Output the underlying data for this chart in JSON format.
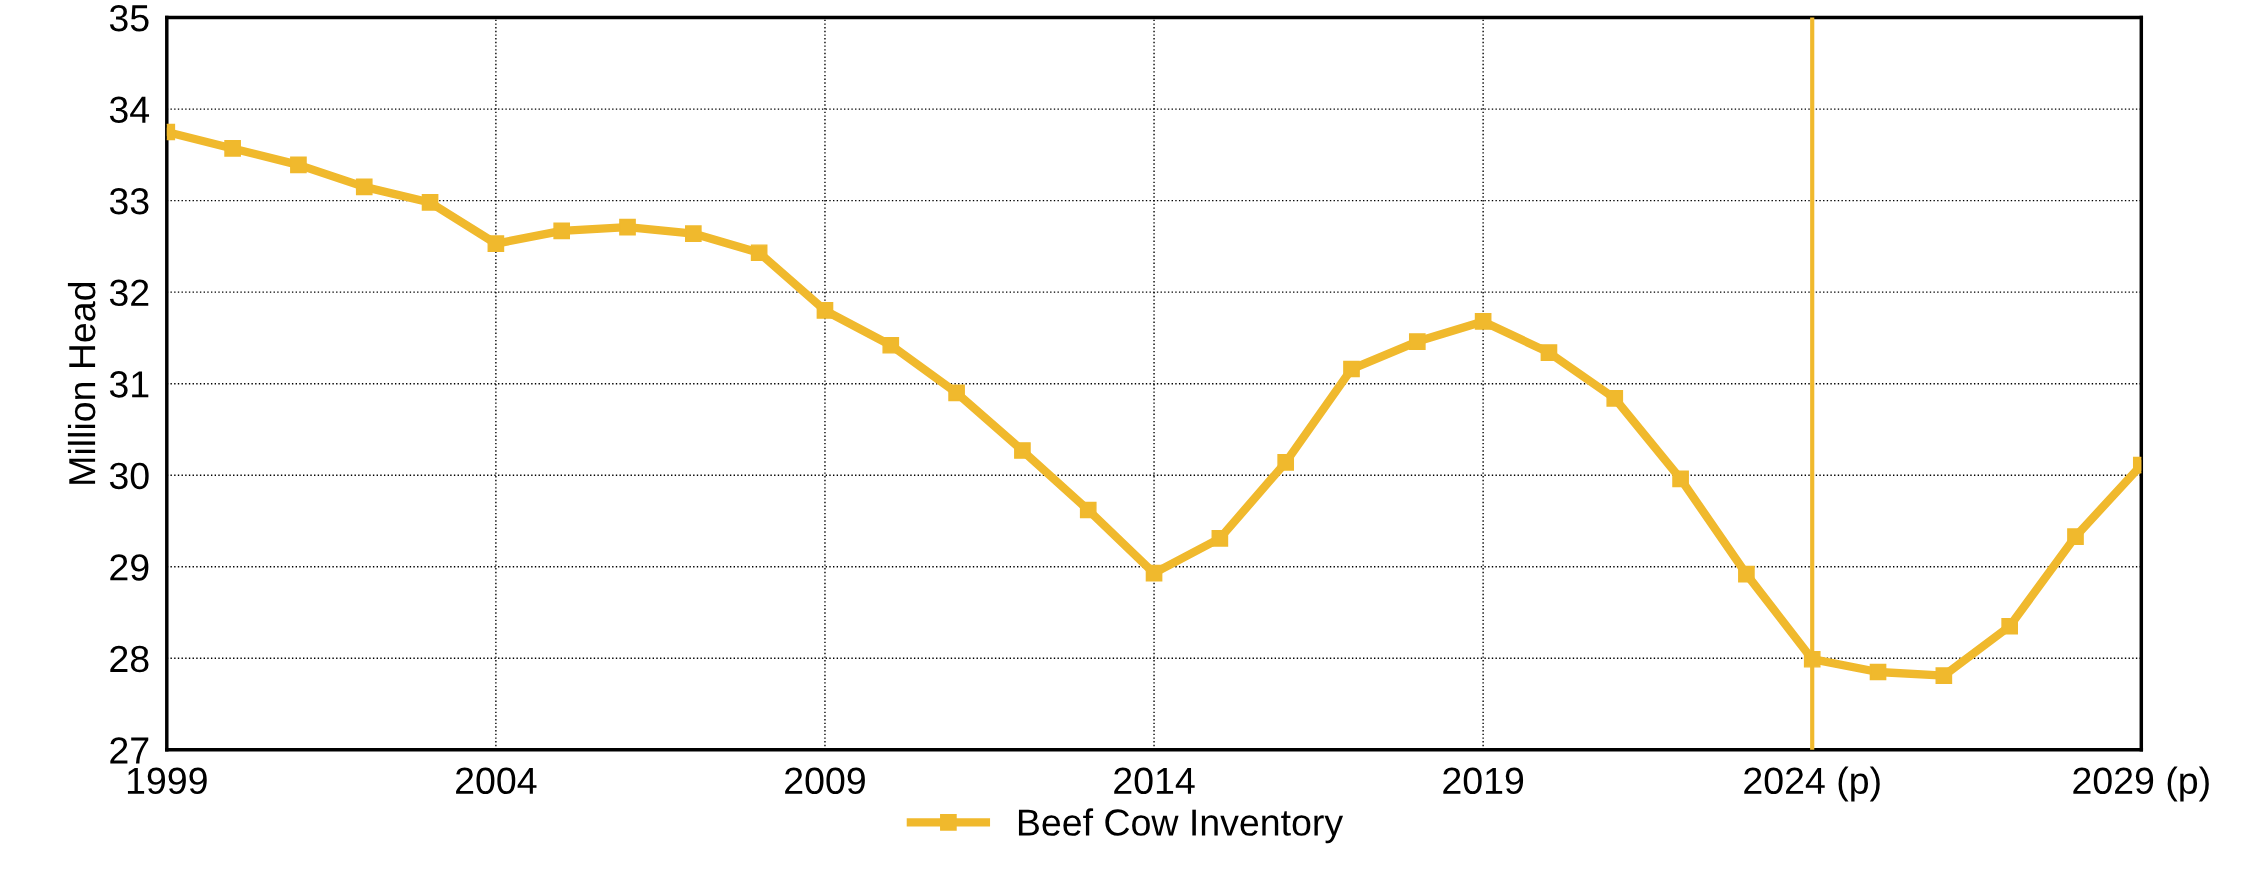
{
  "chart_data": {
    "type": "line",
    "ylabel": "Million Head",
    "x": [
      1999,
      2000,
      2001,
      2002,
      2003,
      2004,
      2005,
      2006,
      2007,
      2008,
      2009,
      2010,
      2011,
      2012,
      2013,
      2014,
      2015,
      2016,
      2017,
      2018,
      2019,
      2020,
      2021,
      2022,
      2023,
      2024,
      2025,
      2026,
      2027,
      2028,
      2029
    ],
    "series": [
      {
        "name": "Beef Cow Inventory",
        "color": "#f0b92d",
        "values": [
          33.75,
          33.57,
          33.39,
          33.15,
          32.98,
          32.53,
          32.67,
          32.71,
          32.64,
          32.43,
          31.8,
          31.42,
          30.9,
          30.27,
          29.62,
          28.93,
          29.31,
          30.14,
          31.16,
          31.46,
          31.68,
          31.34,
          30.84,
          29.96,
          28.92,
          27.99,
          27.85,
          27.81,
          28.35,
          29.33,
          30.11
        ]
      }
    ],
    "xlim": [
      1999,
      2029
    ],
    "xticks": [
      1999,
      2004,
      2009,
      2014,
      2019,
      {
        "value": 2024,
        "label": "2024 (p)"
      },
      {
        "value": 2029,
        "label": "2029 (p)"
      }
    ],
    "ylim": [
      27,
      35
    ],
    "yticks": [
      27,
      28,
      29,
      30,
      31,
      32,
      33,
      34,
      35
    ],
    "ref_lines": [
      {
        "axis": "x",
        "value": 2024,
        "color": "#f0b92d"
      }
    ],
    "grid": true,
    "legend": "bottom",
    "marker": "square",
    "line_style": "solid"
  }
}
